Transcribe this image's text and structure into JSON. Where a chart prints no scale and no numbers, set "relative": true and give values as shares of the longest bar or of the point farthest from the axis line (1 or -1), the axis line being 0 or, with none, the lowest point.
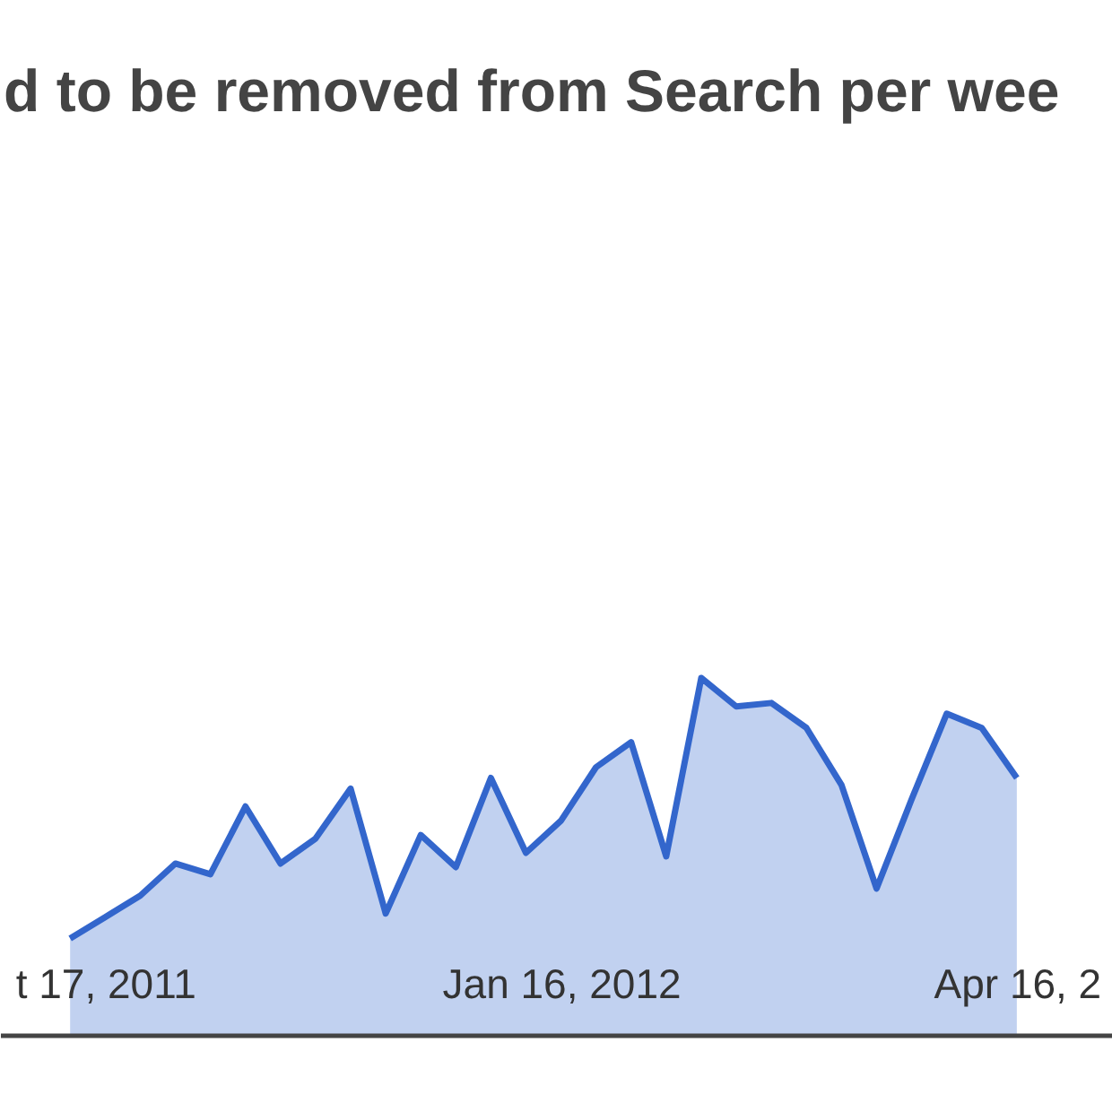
{
  "chart_data": {
    "type": "area",
    "title": "d to be removed from Search per wee",
    "relative": true,
    "x": [
      "2011-10-10",
      "2011-10-17",
      "2011-10-24",
      "2011-10-31",
      "2011-11-07",
      "2011-11-14",
      "2011-11-21",
      "2011-11-28",
      "2011-12-05",
      "2011-12-12",
      "2011-12-19",
      "2011-12-26",
      "2012-01-02",
      "2012-01-09",
      "2012-01-16",
      "2012-01-23",
      "2012-01-30",
      "2012-02-06",
      "2012-02-13",
      "2012-02-20",
      "2012-02-27",
      "2012-03-05",
      "2012-03-12",
      "2012-03-19",
      "2012-03-26",
      "2012-04-02",
      "2012-04-09",
      "2012-04-16"
    ],
    "series": [
      {
        "color": "#3366cc",
        "values": [
          0.27,
          0.33,
          0.39,
          0.48,
          0.45,
          0.64,
          0.48,
          0.55,
          0.69,
          0.34,
          0.56,
          0.47,
          0.72,
          0.51,
          0.6,
          0.75,
          0.82,
          0.5,
          1,
          0.92,
          0.93,
          0.86,
          0.7,
          0.41,
          0.66,
          0.9,
          0.86,
          0.72
        ]
      }
    ],
    "xlim": [
      "2011-09-26",
      "2012-05-05"
    ],
    "xticks": [
      {
        "value": "2011-10-17",
        "label": "t 17, 2011"
      },
      {
        "value": "2012-01-16",
        "label": "Jan 16, 2012"
      },
      {
        "value": "2012-04-16",
        "label": "Apr 16, 2"
      }
    ]
  }
}
